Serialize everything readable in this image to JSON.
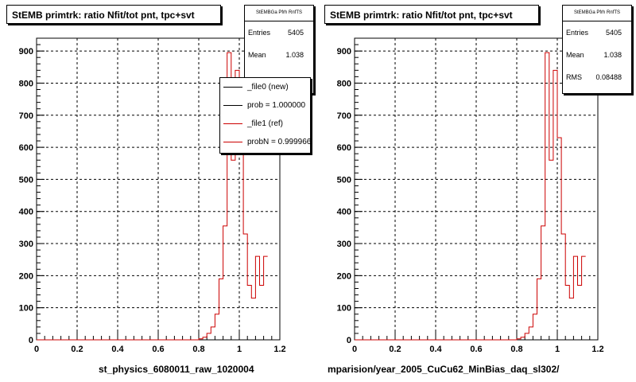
{
  "chart_data": [
    {
      "type": "bar",
      "title": "StEMB primtrk: ratio Nfit/tot pnt, tpc+svt",
      "xlabel": "st_physics_6080011_raw_1020004",
      "ylabel": "",
      "xlim": [
        0,
        1.2
      ],
      "ylim": [
        0,
        940
      ],
      "xticks": [
        "0",
        "0.2",
        "0.4",
        "0.6",
        "0.8",
        "1",
        "1.2"
      ],
      "yticks": [
        "0",
        "100",
        "200",
        "300",
        "400",
        "500",
        "600",
        "700",
        "800",
        "900"
      ],
      "grid": true,
      "stats": {
        "name": "StEMBGa Pfrh RnfTS",
        "entries_label": "Entries",
        "entries": "5405",
        "mean_label": "Mean",
        "mean": "1.038"
      },
      "legend": [
        {
          "label": "_file0 (new)",
          "color": "#000000"
        },
        {
          "label": "prob = 1.000000",
          "color": "#000000"
        },
        {
          "label": "_file1 (ref)",
          "color": "#cc0000"
        },
        {
          "label": "probN = 0.999966",
          "color": "#cc0000"
        }
      ],
      "series": [
        {
          "color": "#cc0000",
          "bin_width": 0.02,
          "bin_start": 0,
          "values": [
            0,
            0,
            0,
            0,
            0,
            0,
            0,
            0,
            0,
            0,
            0,
            0,
            0,
            0,
            0,
            0,
            0,
            0,
            0,
            0,
            0,
            0,
            0,
            0,
            0,
            0,
            0,
            0,
            0,
            0,
            0,
            0,
            0,
            0,
            0,
            0,
            0,
            0,
            0,
            0,
            3,
            8,
            20,
            40,
            80,
            190,
            355,
            895,
            560,
            840,
            630,
            330,
            170,
            130,
            260,
            170,
            260
          ]
        }
      ]
    },
    {
      "type": "bar",
      "title": "StEMB primtrk: ratio Nfit/tot pnt, tpc+svt",
      "xlabel": "mparision/year_2005_CuCu62_MinBias_daq_sl302/",
      "ylabel": "",
      "xlim": [
        0,
        1.2
      ],
      "ylim": [
        0,
        940
      ],
      "xticks": [
        "0",
        "0.2",
        "0.4",
        "0.6",
        "0.8",
        "1",
        "1.2"
      ],
      "yticks": [
        "0",
        "100",
        "200",
        "300",
        "400",
        "500",
        "600",
        "700",
        "800",
        "900"
      ],
      "grid": true,
      "stats": {
        "name": "StEMBGa Pfrh RnfTS",
        "entries_label": "Entries",
        "entries": "5405",
        "mean_label": "Mean",
        "mean": "1.038",
        "rms_label": "RMS",
        "rms": "0.08488"
      },
      "series": [
        {
          "color": "#cc0000",
          "bin_width": 0.02,
          "bin_start": 0,
          "values": [
            0,
            0,
            0,
            0,
            0,
            0,
            0,
            0,
            0,
            0,
            0,
            0,
            0,
            0,
            0,
            0,
            0,
            0,
            0,
            0,
            0,
            0,
            0,
            0,
            0,
            0,
            0,
            0,
            0,
            0,
            0,
            0,
            0,
            0,
            0,
            0,
            0,
            0,
            0,
            0,
            3,
            8,
            20,
            40,
            80,
            190,
            355,
            895,
            560,
            840,
            630,
            330,
            170,
            130,
            260,
            170,
            260
          ]
        }
      ]
    }
  ]
}
